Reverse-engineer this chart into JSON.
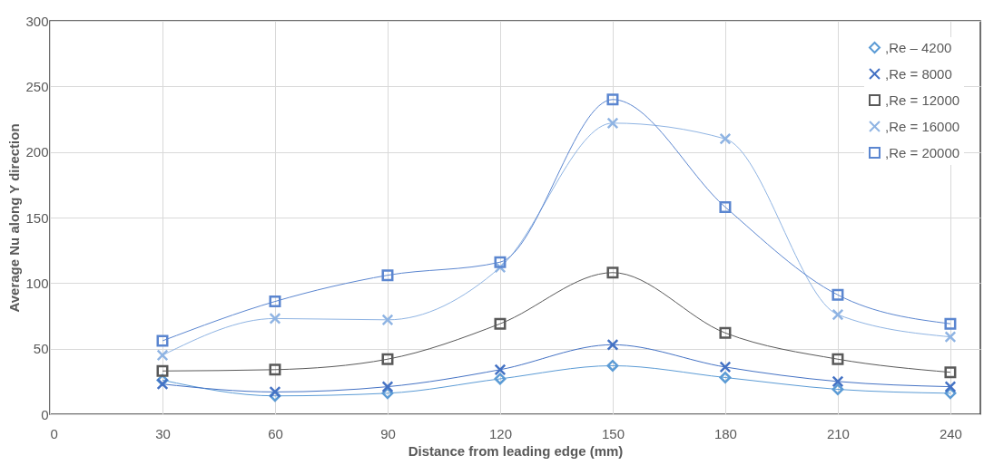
{
  "chart_data": {
    "type": "line",
    "xlabel": "Distance from leading edge (mm)",
    "ylabel": "Average Nu along Y direction",
    "x": [
      30,
      60,
      90,
      120,
      150,
      180,
      210,
      240
    ],
    "series": [
      {
        "name": ",Re – 4200",
        "color": "#5b9bd5",
        "marker": "diamond",
        "values": [
          26,
          14,
          16,
          27,
          37,
          28,
          19,
          16
        ]
      },
      {
        "name": ",Re = 8000",
        "color": "#4472c4",
        "marker": "cross",
        "values": [
          23,
          17,
          21,
          34,
          53,
          36,
          25,
          21
        ]
      },
      {
        "name": ",Re = 12000",
        "color": "#595959",
        "marker": "square",
        "values": [
          33,
          34,
          42,
          69,
          108,
          62,
          42,
          32
        ]
      },
      {
        "name": ",Re = 16000",
        "color": "#8fb4e3",
        "marker": "cross",
        "values": [
          45,
          73,
          72,
          112,
          222,
          210,
          76,
          59
        ]
      },
      {
        "name": ",Re = 20000",
        "color": "#5b86d0",
        "marker": "square",
        "values": [
          56,
          86,
          106,
          116,
          240,
          158,
          91,
          69
        ]
      }
    ],
    "xlim": [
      0,
      248
    ],
    "xticks": [
      0,
      30,
      60,
      90,
      120,
      150,
      180,
      210,
      240
    ],
    "ylim": [
      0,
      300
    ],
    "yticks": [
      0,
      50,
      100,
      150,
      200,
      250,
      300
    ],
    "grid": true,
    "legend": "top right",
    "line_style": "solid"
  }
}
